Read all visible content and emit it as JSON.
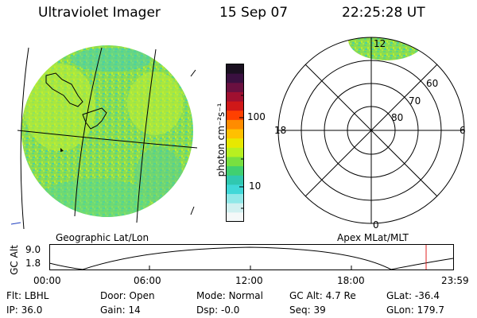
{
  "header": {
    "instrument": "Ultraviolet Imager",
    "date": "15 Sep 07",
    "time": "22:25:28 UT"
  },
  "colorbar": {
    "unit_label": "photon cm⁻²s⁻¹",
    "ticks": [
      "100",
      "10"
    ],
    "colors": [
      "#1a1020",
      "#3a1040",
      "#6a1040",
      "#a01030",
      "#d01818",
      "#ff4000",
      "#ff8c00",
      "#ffc000",
      "#e8e800",
      "#b8f020",
      "#78e040",
      "#40d070",
      "#30c8b0",
      "#40d8d8",
      "#90e8e8",
      "#d0f0f0",
      "#f4f8f8"
    ]
  },
  "left_panel": {
    "caption": "Geographic Lat/Lon"
  },
  "right_panel": {
    "caption": "Apex MLat/MLT",
    "mlt_labels": {
      "top": "12",
      "left": "18",
      "right": "6",
      "bottom": "0"
    },
    "lat_labels": [
      "60",
      "70",
      "80"
    ]
  },
  "altitude_plot": {
    "ylabel": "GC Alt",
    "y_ticks": [
      "9.0",
      "1.8"
    ],
    "x_ticks": [
      "00:00",
      "06:00",
      "12:00",
      "18:00",
      "23:59"
    ],
    "marker_color": "#e02020"
  },
  "footer": {
    "flt_label": "Flt:",
    "flt_value": "LBHL",
    "ip_label": "IP:",
    "ip_value": "36.0",
    "door_label": "Door:",
    "door_value": "Open",
    "gain_label": "Gain:",
    "gain_value": "14",
    "mode_label": "Mode:",
    "mode_value": "Normal",
    "dsp_label": "Dsp:",
    "dsp_value": "-0.0",
    "gcalt_label": "GC Alt:",
    "gcalt_value": "4.7 Re",
    "seq_label": "Seq:",
    "seq_value": "39",
    "glat_label": "GLat:",
    "glat_value": "-36.4",
    "glon_label": "GLon:",
    "glon_value": "179.7"
  }
}
